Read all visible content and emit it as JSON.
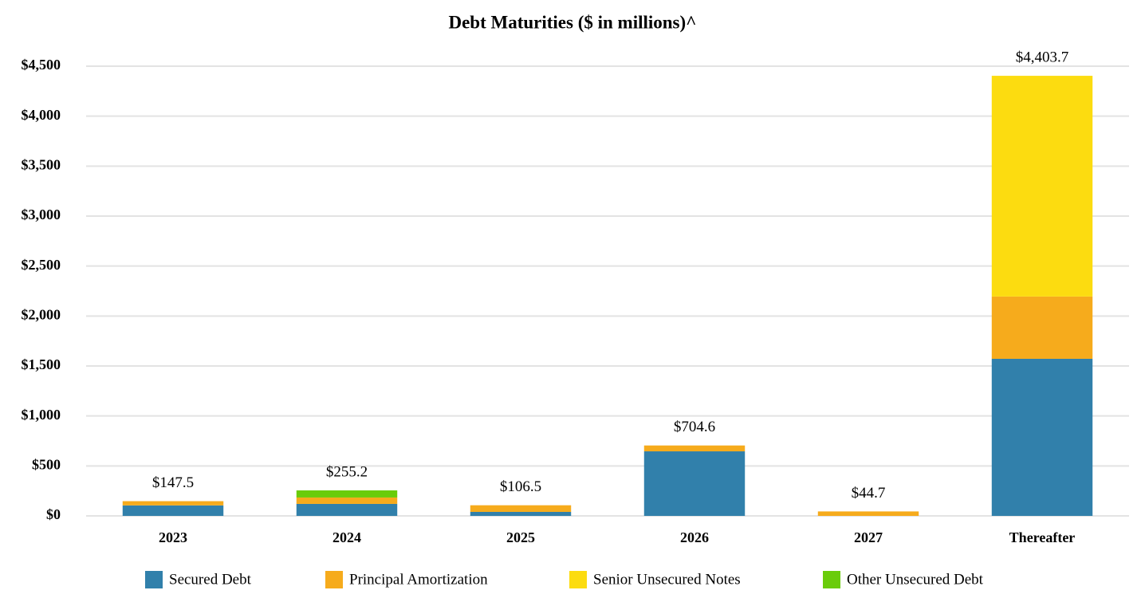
{
  "chart_data": {
    "type": "stacked_bar",
    "title": "Debt Maturities ($ in millions)^",
    "categories": [
      "2023",
      "2024",
      "2025",
      "2026",
      "2027",
      "Thereafter"
    ],
    "series": [
      {
        "name": "Secured Debt",
        "color": "#3180ab",
        "values": [
          105,
          120,
          40,
          646,
          0,
          1572
        ]
      },
      {
        "name": "Principal Amortization",
        "color": "#f6ab1c",
        "values": [
          42.5,
          64,
          66.5,
          58.6,
          44.7,
          623
        ]
      },
      {
        "name": "Senior Unsecured Notes",
        "color": "#fcdc10",
        "values": [
          0,
          0,
          0,
          0,
          0,
          2208.7
        ]
      },
      {
        "name": "Other Unsecured Debt",
        "color": "#6acc0a",
        "values": [
          0,
          71.2,
          0,
          0,
          0,
          0
        ]
      }
    ],
    "totals": {
      "values": [
        147.5,
        255.2,
        106.5,
        704.6,
        44.7,
        4403.7
      ],
      "value_labels": [
        "$147.5",
        "$255.2",
        "$106.5",
        "$704.6",
        "$44.7",
        "$4,403.7"
      ]
    },
    "ylim": [
      0,
      4500
    ],
    "yticks": [
      {
        "value": 0,
        "label": "$0"
      },
      {
        "value": 500,
        "label": "$500"
      },
      {
        "value": 1000,
        "label": "$1,000"
      },
      {
        "value": 1500,
        "label": "$1,500"
      },
      {
        "value": 2000,
        "label": "$2,000"
      },
      {
        "value": 2500,
        "label": "$2,500"
      },
      {
        "value": 3000,
        "label": "$3,000"
      },
      {
        "value": 3500,
        "label": "$3,500"
      },
      {
        "value": 4000,
        "label": "$4,000"
      },
      {
        "value": 4500,
        "label": "$4,500"
      }
    ],
    "grid": true,
    "legend": "bottom"
  }
}
